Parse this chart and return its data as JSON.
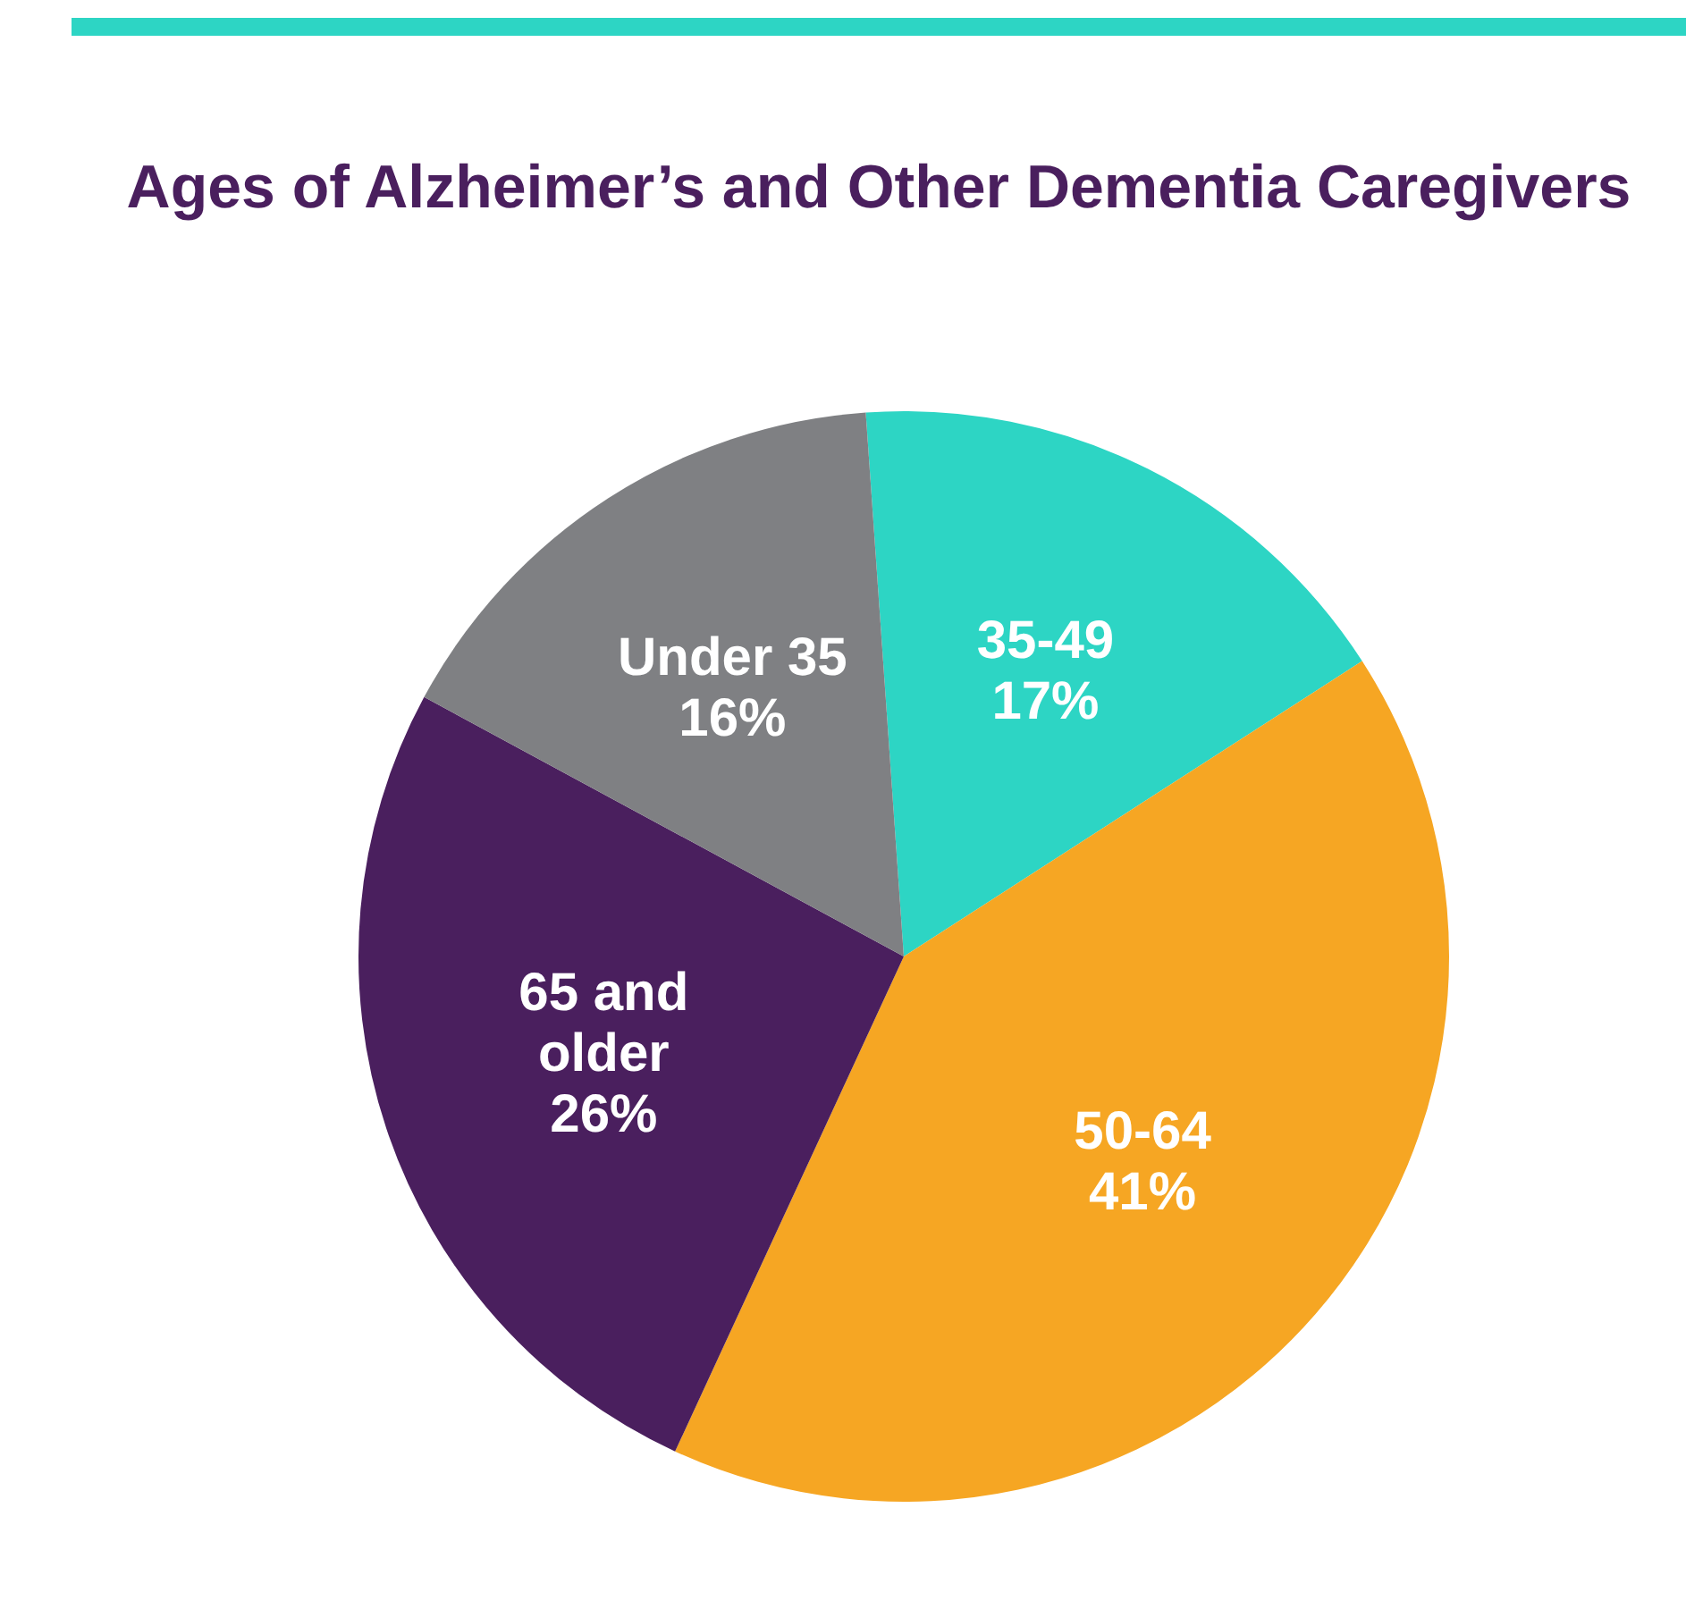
{
  "chart_data": {
    "type": "pie",
    "title": "Ages of Alzheimer’s and Other Dementia Caregivers",
    "categories": [
      "35-49",
      "50-64",
      "65 and older",
      "Under 35"
    ],
    "values": [
      17,
      41,
      26,
      16
    ],
    "colors": [
      "#2dd5c4",
      "#f6a623",
      "#4a1f5e",
      "#7f8083"
    ],
    "value_labels": [
      "17%",
      "41%",
      "26%",
      "16%"
    ],
    "legend": false
  }
}
